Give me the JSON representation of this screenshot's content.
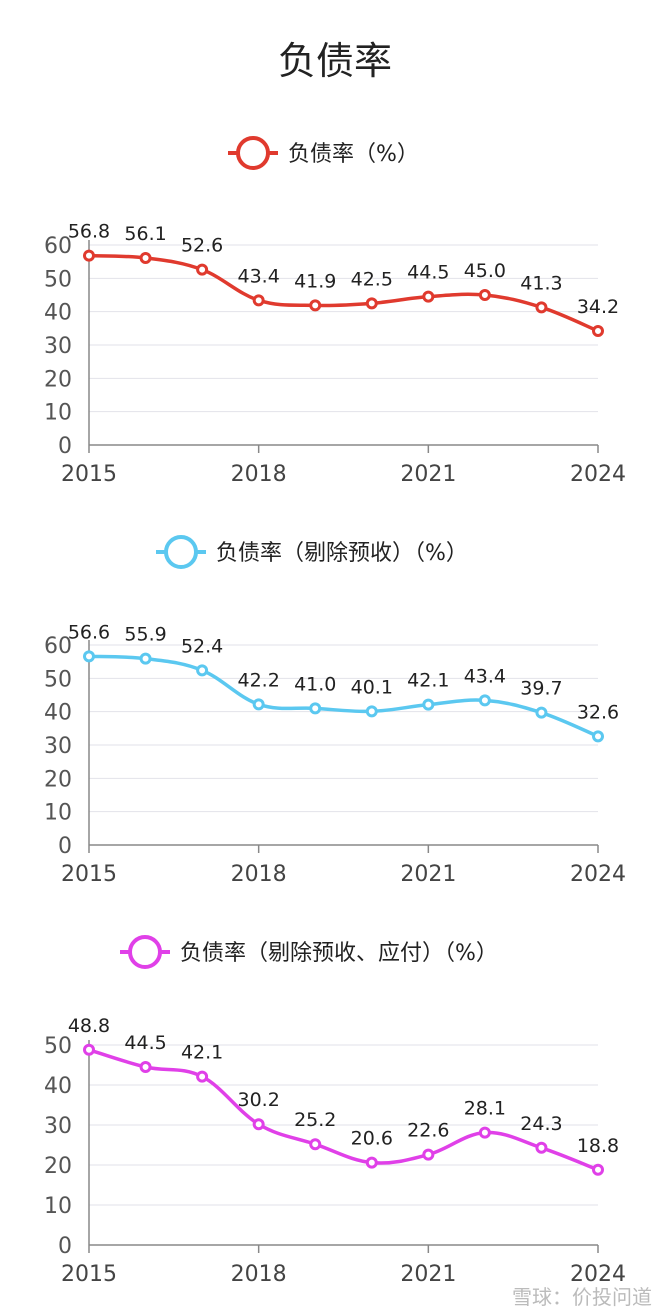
{
  "title": "负债率",
  "watermark": "雪球：价投问道",
  "chart_data": [
    {
      "type": "line",
      "legend": "负债率（%）",
      "color": "#e03a2e",
      "x": [
        2015,
        2016,
        2017,
        2018,
        2019,
        2020,
        2021,
        2022,
        2023,
        2024
      ],
      "x_tick_labels": [
        "2015",
        "2018",
        "2021",
        "2024"
      ],
      "y_ticks": [
        0,
        10,
        20,
        30,
        40,
        50,
        60
      ],
      "ylim": [
        0,
        60
      ],
      "values": [
        56.8,
        56.1,
        52.6,
        43.4,
        41.9,
        42.5,
        44.5,
        45.0,
        41.3,
        34.2
      ],
      "labels": [
        "56.8",
        "56.1",
        "52.6",
        "43.4",
        "41.9",
        "42.5",
        "44.5",
        "45.0",
        "41.3",
        "34.2"
      ]
    },
    {
      "type": "line",
      "legend": "负债率（剔除预收）（%）",
      "color": "#5bc8f0",
      "x": [
        2015,
        2016,
        2017,
        2018,
        2019,
        2020,
        2021,
        2022,
        2023,
        2024
      ],
      "x_tick_labels": [
        "2015",
        "2018",
        "2021",
        "2024"
      ],
      "y_ticks": [
        0,
        10,
        20,
        30,
        40,
        50,
        60
      ],
      "ylim": [
        0,
        60
      ],
      "values": [
        56.6,
        55.9,
        52.4,
        42.2,
        41.0,
        40.1,
        42.1,
        43.4,
        39.7,
        32.6
      ],
      "labels": [
        "56.6",
        "55.9",
        "52.4",
        "42.2",
        "41.0",
        "40.1",
        "42.1",
        "43.4",
        "39.7",
        "32.6"
      ]
    },
    {
      "type": "line",
      "legend": "负债率（剔除预收、应付）（%）",
      "color": "#e040e8",
      "x": [
        2015,
        2016,
        2017,
        2018,
        2019,
        2020,
        2021,
        2022,
        2023,
        2024
      ],
      "x_tick_labels": [
        "2015",
        "2018",
        "2021",
        "2024"
      ],
      "y_ticks": [
        0,
        10,
        20,
        30,
        40,
        50
      ],
      "ylim": [
        0,
        50
      ],
      "values": [
        48.8,
        44.5,
        42.1,
        30.2,
        25.2,
        20.6,
        22.6,
        28.1,
        24.3,
        18.8
      ],
      "labels": [
        "48.8",
        "44.5",
        "42.1",
        "30.2",
        "25.2",
        "20.6",
        "22.6",
        "28.1",
        "24.3",
        "18.8"
      ]
    }
  ]
}
